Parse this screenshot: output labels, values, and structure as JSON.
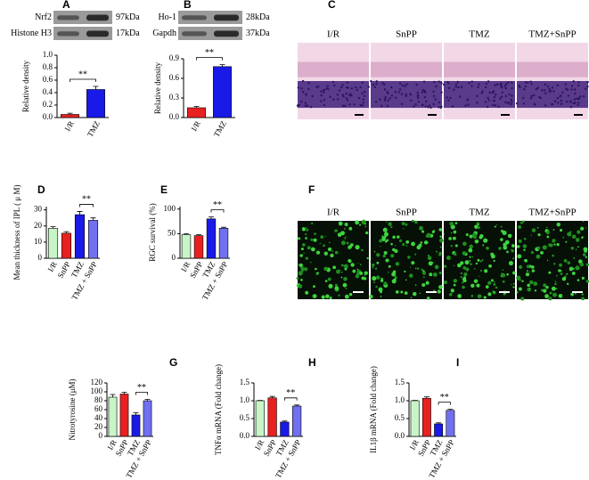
{
  "chart_data": [
    {
      "type": "bar",
      "panel": "A",
      "blot_labels": [
        "Nrf2",
        "Histone H3"
      ],
      "blot_sizes": [
        "97kDa",
        "17kDa"
      ],
      "ylabel": "Relative density",
      "categories": [
        "I/R",
        "TMZ"
      ],
      "values": [
        0.05,
        0.45
      ],
      "errors": [
        0.02,
        0.05
      ],
      "colors": [
        "#e82020",
        "#1a1ae8"
      ],
      "ylim": [
        0,
        1.0
      ],
      "yticks": [
        {
          "value": 0,
          "label": "0.0"
        },
        0.2,
        0.4,
        0.6,
        0.8,
        {
          "value": 1,
          "label": "1.0"
        }
      ],
      "annotation": "**"
    },
    {
      "type": "bar",
      "panel": "B",
      "blot_labels": [
        "Ho-1",
        "Gapdh"
      ],
      "blot_sizes": [
        "28kDa",
        "37kDa"
      ],
      "ylabel": "Relative density",
      "categories": [
        "I/R",
        "TMZ"
      ],
      "values": [
        0.15,
        0.78
      ],
      "errors": [
        0.02,
        0.03
      ],
      "colors": [
        "#e82020",
        "#1a1ae8"
      ],
      "ylim": [
        0,
        0.9
      ],
      "yticks": [
        {
          "value": 0,
          "label": "0.0"
        },
        0.3,
        0.6,
        0.9
      ],
      "annotation": "**"
    },
    {
      "type": "image",
      "panel": "C",
      "image_labels": [
        "I/R",
        "SnPP",
        "TMZ",
        "TMZ+SnPP"
      ]
    },
    {
      "type": "bar",
      "panel": "D",
      "ylabel": "Mean thickness of IPL ( μ M)",
      "categories": [
        "I/R",
        "SnPP",
        "TMZ",
        "TMZ + SnPP"
      ],
      "values": [
        18.5,
        15.5,
        27,
        23.5
      ],
      "errors": [
        1,
        1,
        2,
        1.5
      ],
      "colors": [
        "#c8f5c8",
        "#e82020",
        "#1a1ae8",
        "#7070f0"
      ],
      "ylim": [
        0,
        32
      ],
      "yticks": [
        0,
        10,
        20,
        30
      ],
      "annotation": "**"
    },
    {
      "type": "bar",
      "panel": "E",
      "ylabel": "RGC survival (%)",
      "categories": [
        "I/R",
        "SnPP",
        "TMZ",
        "TMZ + SnPP"
      ],
      "values": [
        48,
        46,
        80,
        61
      ],
      "errors": [
        2,
        2,
        4,
        2
      ],
      "colors": [
        "#c8f5c8",
        "#e82020",
        "#1a1ae8",
        "#7070f0"
      ],
      "ylim": [
        0,
        105
      ],
      "yticks": [
        0,
        50,
        100
      ],
      "annotation": "**"
    },
    {
      "type": "image",
      "panel": "F",
      "image_labels": [
        "I/R",
        "SnPP",
        "TMZ",
        "TMZ+SnPP"
      ]
    },
    {
      "type": "bar",
      "panel": "G",
      "ylabel": "Nitrotyrosine (μM)",
      "categories": [
        "I/R",
        "SnPP",
        "TMZ",
        "TMZ + SnPP"
      ],
      "values": [
        88,
        95,
        48,
        80
      ],
      "errors": [
        6,
        4,
        5,
        3
      ],
      "colors": [
        "#c8f5c8",
        "#e82020",
        "#1a1ae8",
        "#7070f0"
      ],
      "ylim": [
        0,
        120
      ],
      "yticks": [
        0,
        20,
        40,
        60,
        80,
        100,
        120
      ],
      "annotation": "**"
    },
    {
      "type": "bar",
      "panel": "H",
      "ylabel": "TNFα mRNA (Fold change)",
      "categories": [
        "I/R",
        "SnPP",
        "TMZ",
        "TMZ + SnPP"
      ],
      "values": [
        1.0,
        1.08,
        0.4,
        0.85
      ],
      "errors": [
        0.01,
        0.04,
        0.03,
        0.03
      ],
      "colors": [
        "#c8f5c8",
        "#e82020",
        "#1a1ae8",
        "#7070f0"
      ],
      "ylim": [
        0,
        1.5
      ],
      "yticks": [
        {
          "value": 0,
          "label": "0.0"
        },
        0.5,
        {
          "value": 1,
          "label": "1.0"
        },
        1.5
      ],
      "annotation": "**"
    },
    {
      "type": "bar",
      "panel": "I",
      "ylabel": "IL1β mRNA (Fold change)",
      "categories": [
        "I/R",
        "SnPP",
        "TMZ",
        "TMZ + SnPP"
      ],
      "values": [
        1.0,
        1.07,
        0.35,
        0.73
      ],
      "errors": [
        0.01,
        0.04,
        0.03,
        0.03
      ],
      "colors": [
        "#c8f5c8",
        "#e82020",
        "#1a1ae8",
        "#7070f0"
      ],
      "ylim": [
        0,
        1.5
      ],
      "yticks": [
        {
          "value": 0,
          "label": "0.0"
        },
        0.5,
        {
          "value": 1,
          "label": "1.0"
        },
        1.5
      ],
      "annotation": "**"
    }
  ]
}
